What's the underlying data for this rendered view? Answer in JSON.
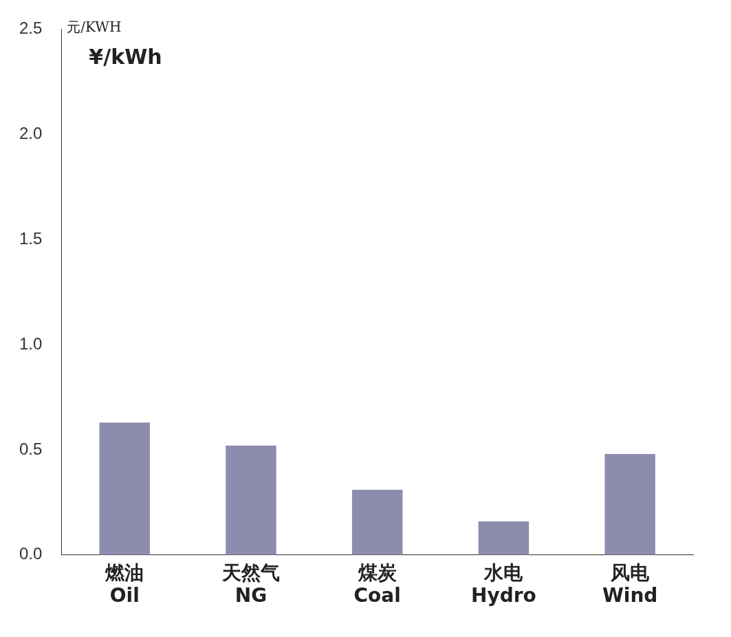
{
  "chart_data": {
    "type": "bar",
    "ylabel": "元/KWH\n¥/kWh",
    "categories": [
      "燃油\nOil",
      "天然气\nNG",
      "煤炭\nCoal",
      "水电\nHydro",
      "风电\nWind"
    ],
    "values": [
      0.63,
      0.52,
      0.31,
      0.16,
      0.48
    ],
    "color": "#8c8cae",
    "ylim": [
      0,
      2.5
    ],
    "yticks": [
      {
        "value": 0,
        "label": "0.0"
      },
      {
        "value": 0.5,
        "label": "0.5"
      },
      {
        "value": 1,
        "label": "1.0"
      },
      {
        "value": 1.5,
        "label": "1.5"
      },
      {
        "value": 2,
        "label": "2.0"
      },
      {
        "value": 2.5,
        "label": "2.5"
      }
    ],
    "grid": false,
    "legend": false
  }
}
